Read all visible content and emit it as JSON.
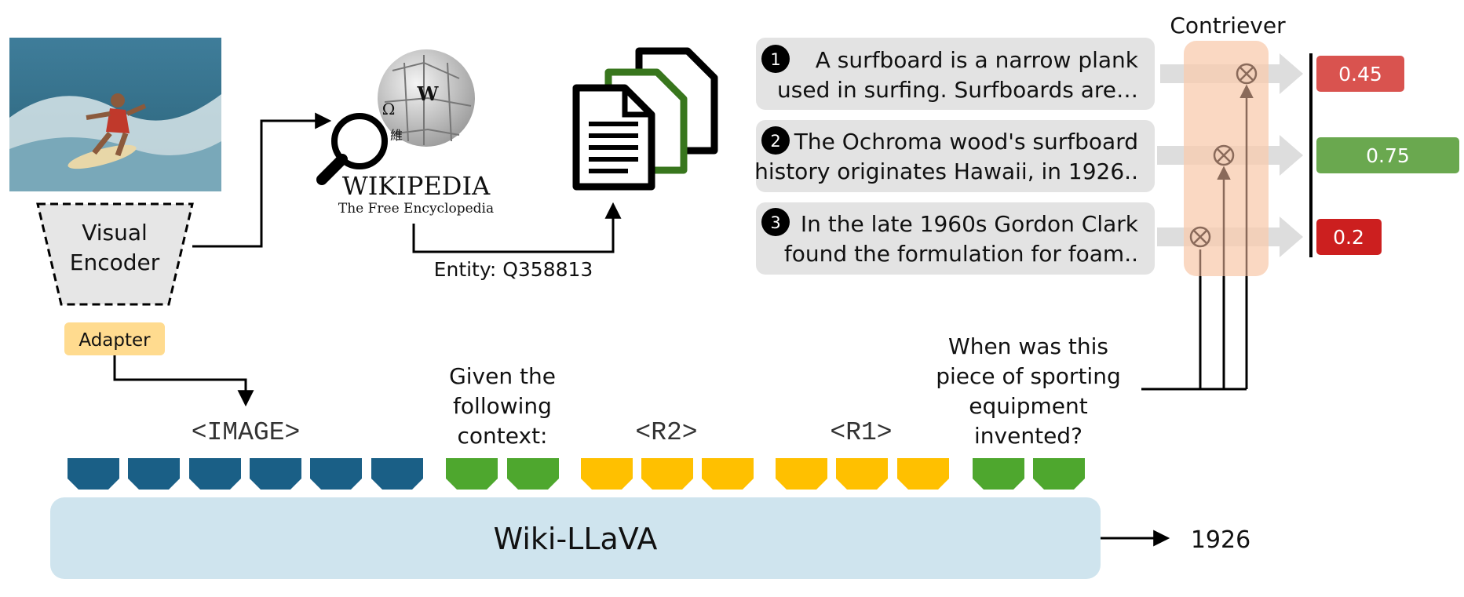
{
  "encoder": {
    "line1": "Visual",
    "line2": "Encoder"
  },
  "adapter": "Adapter",
  "wikipedia": {
    "title": "WIKIPEDIA",
    "subtitle": "The Free Encyclopedia",
    "globe_glyphs": [
      "W",
      "Ω",
      "維"
    ]
  },
  "entity": "Entity: Q358813",
  "passages": [
    {
      "num": "1",
      "line1": "A surfboard is a narrow plank",
      "line2": "used in surfing. Surfboards are…"
    },
    {
      "num": "2",
      "line1": "The Ochroma wood's surfboard",
      "line2": "history originates Hawaii, in 1926.."
    },
    {
      "num": "3",
      "line1": "In the late 1960s Gordon Clark",
      "line2": "found the formulation for foam.."
    }
  ],
  "contriever": "Contriever",
  "scores": [
    {
      "value": "0.45",
      "color": "#d9534f"
    },
    {
      "value": "0.75",
      "color": "#6aa84f"
    },
    {
      "value": "0.2",
      "color": "#cc1f1f"
    }
  ],
  "question": [
    "When was this",
    "piece of sporting",
    "equipment",
    "invented?"
  ],
  "context_label": [
    "Given the",
    "following",
    "context:"
  ],
  "tokens": {
    "image": "<IMAGE>",
    "r2": "<R2>",
    "r1": "<R1>"
  },
  "model": "Wiki-LLaVA",
  "answer": "1926",
  "colors": {
    "image_token": "#1a5f86",
    "text_token": "#4ea72e",
    "retrieved_token": "#ffc000",
    "model_box": "#cfe4ee",
    "contriever_band": "#f8cbad",
    "adapter": "#ffdb8f"
  },
  "icons": [
    "surfer-photo",
    "magnifier-icon",
    "wikipedia-globe-icon",
    "documents-icon",
    "multiply-icon"
  ]
}
